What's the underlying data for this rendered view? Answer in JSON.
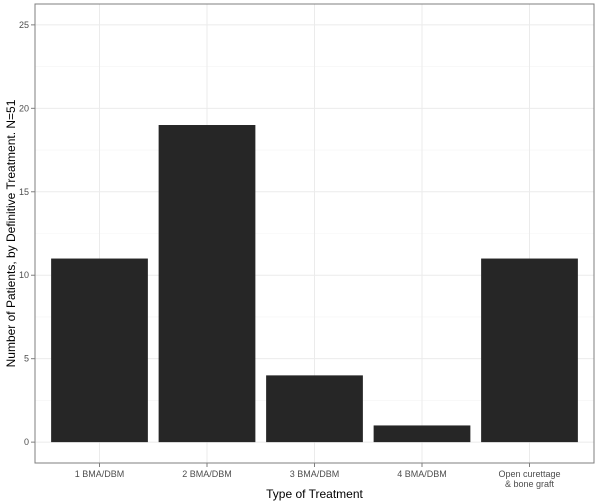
{
  "chart_data": {
    "type": "bar",
    "xlabel": "Type of Treatment",
    "ylabel": "Number of Patients, by Definitive Treatment. N=51",
    "categories": [
      [
        "1 BMA/DBM"
      ],
      [
        "2 BMA/DBM"
      ],
      [
        "3 BMA/DBM"
      ],
      [
        "4 BMA/DBM"
      ],
      [
        "Open curettage",
        "& bone graft"
      ]
    ],
    "values": [
      11,
      19,
      4,
      1,
      11
    ],
    "ylim": [
      -1.25,
      26.25
    ],
    "yticks": [
      0,
      5,
      10,
      15,
      20,
      25
    ],
    "grid": true,
    "colors": {
      "bar": "#262626",
      "panel_border": "#7f7f7f",
      "grid_major": "#ebebeb",
      "grid_minor": "#f5f5f5"
    }
  }
}
